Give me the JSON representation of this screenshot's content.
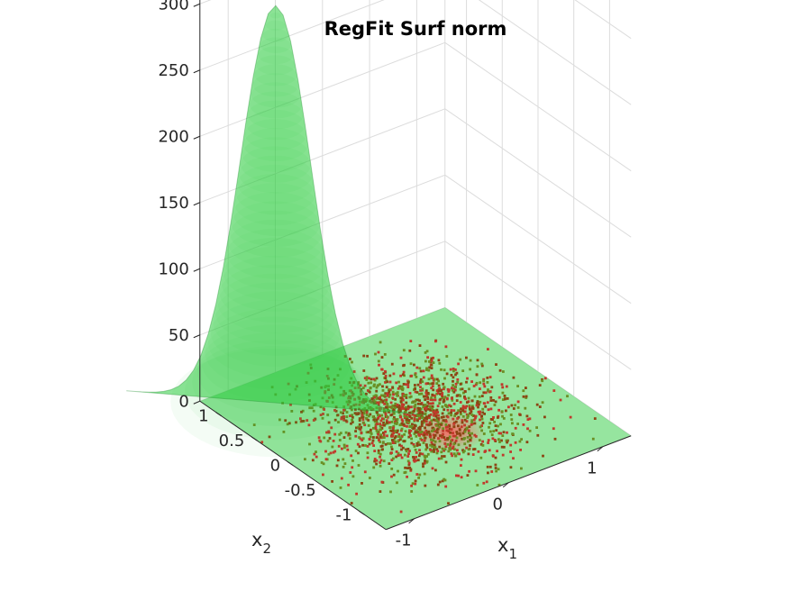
{
  "chart_data": {
    "type": "surface3d",
    "title": "RegFit Surf norm",
    "xlabel": "x",
    "xlabel_sub": "1",
    "ylabel": "x",
    "ylabel_sub": "2",
    "zlabel": "",
    "xlim": [
      -1.3,
      1.3
    ],
    "ylim": [
      -1.3,
      1.3
    ],
    "zlim": [
      0,
      300
    ],
    "x_ticks": [
      "-1",
      "0",
      "1"
    ],
    "y_ticks": [
      "-1",
      "-0.5",
      "0",
      "0.5",
      "1"
    ],
    "z_ticks": [
      "0",
      "50",
      "100",
      "150",
      "200",
      "250",
      "300"
    ],
    "grid": true,
    "surface": {
      "name": "",
      "shape": "gaussian",
      "peak_z": 300,
      "center_x": -0.8,
      "center_y": 0.9,
      "spread": 0.3,
      "color": "#2ecc40",
      "opacity": 0.55
    },
    "scatter": {
      "count": 1600,
      "center": [
        0.0,
        0.0
      ],
      "spread": [
        0.45,
        0.45
      ],
      "colors": [
        "#c0392b",
        "#8b4513",
        "#6b8e23"
      ]
    },
    "colors": {
      "grid": "#dcdcdc",
      "axis": "#262626",
      "surface": "#2ecc40",
      "points": "#a02010"
    }
  }
}
